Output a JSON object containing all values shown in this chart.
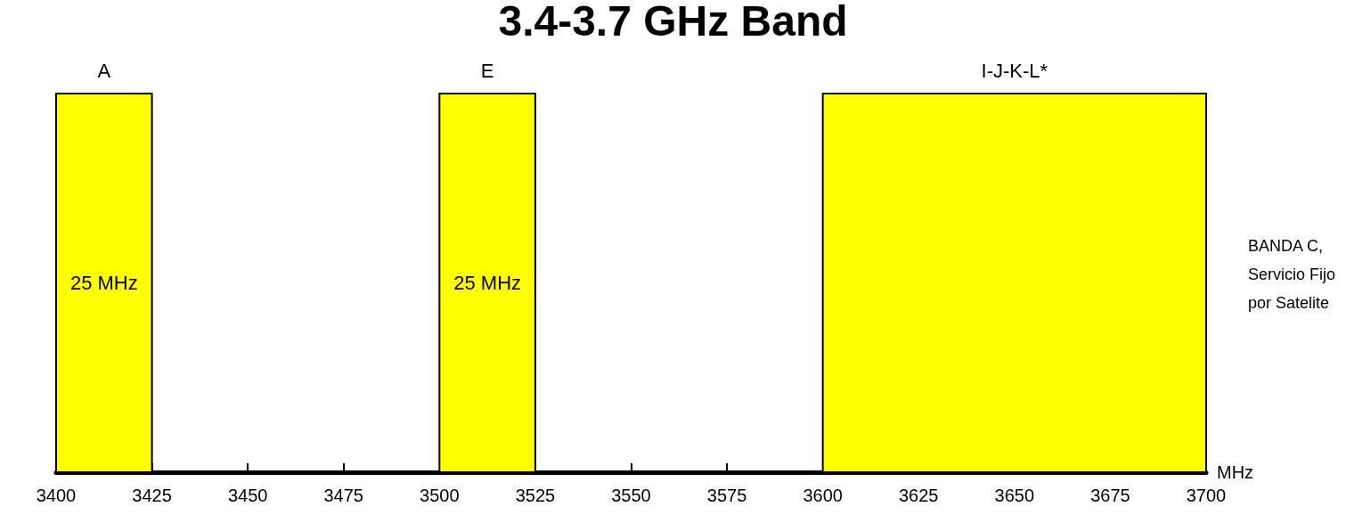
{
  "chart_data": {
    "type": "bar",
    "orientation": "horizontal",
    "title": "3.4-3.7 GHz Band",
    "xlabel": "MHz",
    "categories": [
      null
    ],
    "series": [
      {
        "name": "A",
        "color": "#ffff00",
        "values": [
          25
        ],
        "base": [
          3400
        ],
        "value_labels": [
          "25 MHz"
        ]
      },
      {
        "name": "E",
        "color": "#ffff00",
        "values": [
          25
        ],
        "base": [
          3500
        ],
        "value_labels": [
          "25 MHz"
        ]
      },
      {
        "name": "I-J-K-L*",
        "color": "#ffff00",
        "values": [
          100
        ],
        "base": [
          3600
        ],
        "value_labels": [
          null
        ]
      }
    ],
    "xlim": [
      3400,
      3700
    ],
    "xticks": [
      3400,
      3425,
      3450,
      3475,
      3500,
      3525,
      3550,
      3575,
      3600,
      3625,
      3650,
      3675,
      3700
    ],
    "annotations": [
      "BANDA C,\nServicio Fijo\npor Satelite"
    ],
    "grid": false,
    "legend": false
  }
}
